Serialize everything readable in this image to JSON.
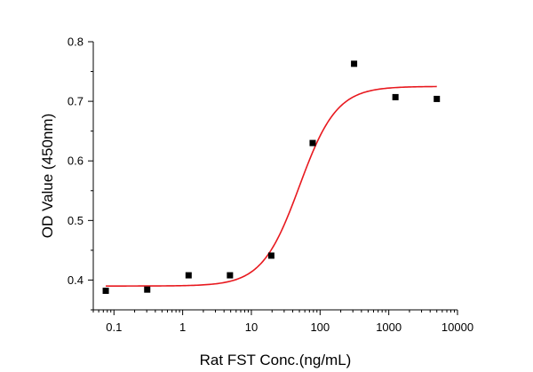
{
  "chart_data": {
    "type": "scatter",
    "xlabel": "Rat FST Conc.(ng/mL)",
    "ylabel": "OD Value (450nm)",
    "xscale": "log",
    "xlim": [
      0.05,
      10000
    ],
    "ylim": [
      0.35,
      0.8
    ],
    "x_ticks": [
      {
        "value": 0.1,
        "label": "0.1"
      },
      {
        "value": 1,
        "label": "1"
      },
      {
        "value": 10,
        "label": "10"
      },
      {
        "value": 100,
        "label": "100"
      },
      {
        "value": 1000,
        "label": "1000"
      },
      {
        "value": 10000,
        "label": "10000"
      }
    ],
    "y_ticks": [
      {
        "value": 0.4,
        "label": "0.4"
      },
      {
        "value": 0.5,
        "label": "0.5"
      },
      {
        "value": 0.6,
        "label": "0.6"
      },
      {
        "value": 0.7,
        "label": "0.7"
      },
      {
        "value": 0.8,
        "label": "0.8"
      }
    ],
    "grid": false,
    "series": [
      {
        "marker": "square",
        "color": "#000000",
        "points": [
          {
            "x": 0.076,
            "y": 0.382
          },
          {
            "x": 0.305,
            "y": 0.384
          },
          {
            "x": 1.22,
            "y": 0.408
          },
          {
            "x": 4.88,
            "y": 0.408
          },
          {
            "x": 19.5,
            "y": 0.441
          },
          {
            "x": 78,
            "y": 0.63
          },
          {
            "x": 312.5,
            "y": 0.763
          },
          {
            "x": 1250,
            "y": 0.707
          },
          {
            "x": 5000,
            "y": 0.704
          }
        ]
      }
    ],
    "fit": {
      "model": "4PL",
      "color": "#e8191f",
      "bottom": 0.39,
      "top": 0.725,
      "ec50": 50,
      "hill": 1.6,
      "x_range": [
        0.076,
        5000
      ]
    }
  }
}
